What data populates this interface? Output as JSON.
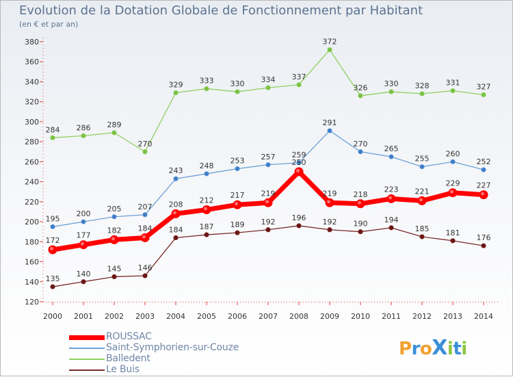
{
  "title": "Evolution de la Dotation Globale de Fonctionnement par Habitant",
  "subtitle": "(en € et par an)",
  "logo": {
    "text": "ProXiti",
    "letters": [
      "P",
      "r",
      "o",
      "X",
      "i",
      "t",
      "i"
    ],
    "colors": [
      "#f0a030",
      "#3a8fd8",
      "#f0a030",
      "#3a8fd8",
      "#8cc63f",
      "#3a8fd8",
      "#8cc63f"
    ]
  },
  "chart_data": {
    "type": "line",
    "title": "Evolution de la Dotation Globale de Fonctionnement par Habitant",
    "subtitle": "(en € et par an)",
    "xlabel": "",
    "ylabel": "",
    "x": [
      2000,
      2001,
      2002,
      2003,
      2004,
      2005,
      2006,
      2007,
      2008,
      2009,
      2010,
      2011,
      2012,
      2013,
      2014
    ],
    "ylim": [
      120,
      380
    ],
    "yticks": [
      120,
      140,
      160,
      180,
      200,
      220,
      240,
      260,
      280,
      300,
      320,
      340,
      360,
      380
    ],
    "grid": false,
    "legend": "bottom-left",
    "series": [
      {
        "name": "Le Buis",
        "color": "#7a2a2a",
        "marker": "#6b1515",
        "thick": false,
        "values": [
          135,
          140,
          145,
          146,
          184,
          187,
          189,
          192,
          196,
          192,
          190,
          194,
          185,
          181,
          176
        ]
      },
      {
        "name": "Balledent",
        "color": "#90d060",
        "marker": "#7ac143",
        "thick": false,
        "values": [
          284,
          286,
          289,
          270,
          329,
          333,
          330,
          334,
          337,
          372,
          326,
          330,
          328,
          331,
          327
        ]
      },
      {
        "name": "Saint-Symphorien-sur-Couze",
        "color": "#6aa0d8",
        "marker": "#3d7cc9",
        "thick": false,
        "values": [
          195,
          200,
          205,
          207,
          243,
          248,
          253,
          257,
          259,
          291,
          270,
          265,
          255,
          260,
          252
        ]
      },
      {
        "name": "ROUSSAC",
        "color": "#ff0000",
        "marker": "#e00000",
        "thick": true,
        "values": [
          172,
          177,
          182,
          184,
          208,
          212,
          217,
          219,
          250,
          219,
          218,
          223,
          221,
          229,
          227
        ]
      }
    ],
    "legend_order": [
      "ROUSSAC",
      "Saint-Symphorien-sur-Couze",
      "Balledent",
      "Le Buis"
    ]
  }
}
